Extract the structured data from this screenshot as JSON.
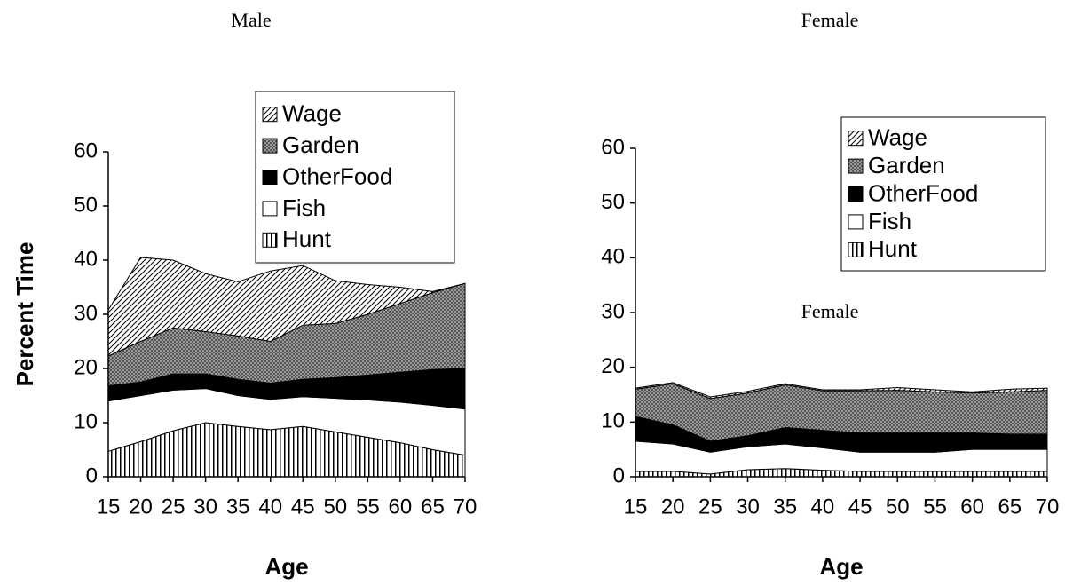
{
  "chart_data": [
    {
      "type": "stacked_area",
      "title": "Male",
      "xlabel": "Age",
      "ylabel": "Percent Time",
      "x": [
        15,
        20,
        25,
        30,
        35,
        40,
        45,
        50,
        55,
        60,
        65,
        70
      ],
      "xlim": [
        15,
        70
      ],
      "xticks": [
        15,
        20,
        25,
        30,
        35,
        40,
        45,
        50,
        55,
        60,
        65,
        70
      ],
      "ylim": [
        0,
        60
      ],
      "yticks": [
        0,
        10,
        20,
        30,
        40,
        50,
        60
      ],
      "legend": "upper right",
      "series": [
        {
          "name": "Hunt",
          "color": "#000000",
          "pattern": "vertical",
          "values": [
            4.7,
            6.5,
            8.5,
            10,
            9.3,
            8.7,
            9.3,
            8.3,
            7.3,
            6.3,
            5,
            4
          ]
        },
        {
          "name": "Fish",
          "color": "#ffffff",
          "pattern": "solid",
          "values": [
            9.3,
            8.5,
            7.5,
            6.3,
            5.7,
            5.6,
            5.5,
            6.2,
            6.9,
            7.5,
            8.2,
            8.5
          ]
        },
        {
          "name": "OtherFood",
          "color": "#000000",
          "pattern": "solid",
          "values": [
            2.8,
            2.5,
            3,
            2.7,
            3,
            3,
            3.2,
            3.8,
            4.6,
            5.5,
            6.6,
            7.5
          ]
        },
        {
          "name": "Garden",
          "color": "#808080",
          "pattern": "dots",
          "values": [
            5.5,
            7.5,
            8.5,
            7.8,
            8,
            7.7,
            10,
            10,
            11.2,
            12.7,
            14.2,
            15.7
          ]
        },
        {
          "name": "Wage",
          "color": "#000000",
          "pattern": "diagonal",
          "values": [
            8.5,
            15.5,
            12.5,
            10.7,
            10,
            13,
            11,
            7.9,
            5.5,
            3,
            0.2,
            0
          ]
        }
      ]
    },
    {
      "type": "stacked_area",
      "title": "Female",
      "xlabel": "Age",
      "annotation": "Female",
      "x": [
        15,
        20,
        25,
        30,
        35,
        40,
        45,
        50,
        55,
        60,
        65,
        70
      ],
      "xlim": [
        15,
        70
      ],
      "xticks": [
        15,
        20,
        25,
        30,
        35,
        40,
        45,
        50,
        55,
        60,
        65,
        70
      ],
      "ylim": [
        0,
        60
      ],
      "yticks": [
        0,
        10,
        20,
        30,
        40,
        50,
        60
      ],
      "legend": "upper right",
      "series": [
        {
          "name": "Hunt",
          "color": "#000000",
          "pattern": "vertical",
          "values": [
            1,
            1,
            0.5,
            1.3,
            1.5,
            1.2,
            1,
            1,
            1,
            1,
            1,
            1
          ]
        },
        {
          "name": "Fish",
          "color": "#ffffff",
          "pattern": "solid",
          "values": [
            5.5,
            5,
            4,
            4.2,
            4.5,
            4.1,
            3.5,
            3.5,
            3.5,
            4,
            4,
            4
          ]
        },
        {
          "name": "OtherFood",
          "color": "#000000",
          "pattern": "solid",
          "values": [
            4.5,
            3.5,
            2,
            2,
            3,
            3.2,
            3.5,
            3.5,
            3.5,
            3,
            2.8,
            2.8
          ]
        },
        {
          "name": "Garden",
          "color": "#808080",
          "pattern": "dots",
          "values": [
            5,
            7.5,
            7.8,
            7.8,
            7.8,
            7.2,
            7.7,
            7.8,
            7.5,
            7.3,
            7.7,
            8
          ]
        },
        {
          "name": "Wage",
          "color": "#000000",
          "pattern": "diagonal",
          "values": [
            0.2,
            0.2,
            0.3,
            0.3,
            0.2,
            0.2,
            0.2,
            0.5,
            0.4,
            0.2,
            0.5,
            0.4
          ]
        }
      ]
    }
  ]
}
